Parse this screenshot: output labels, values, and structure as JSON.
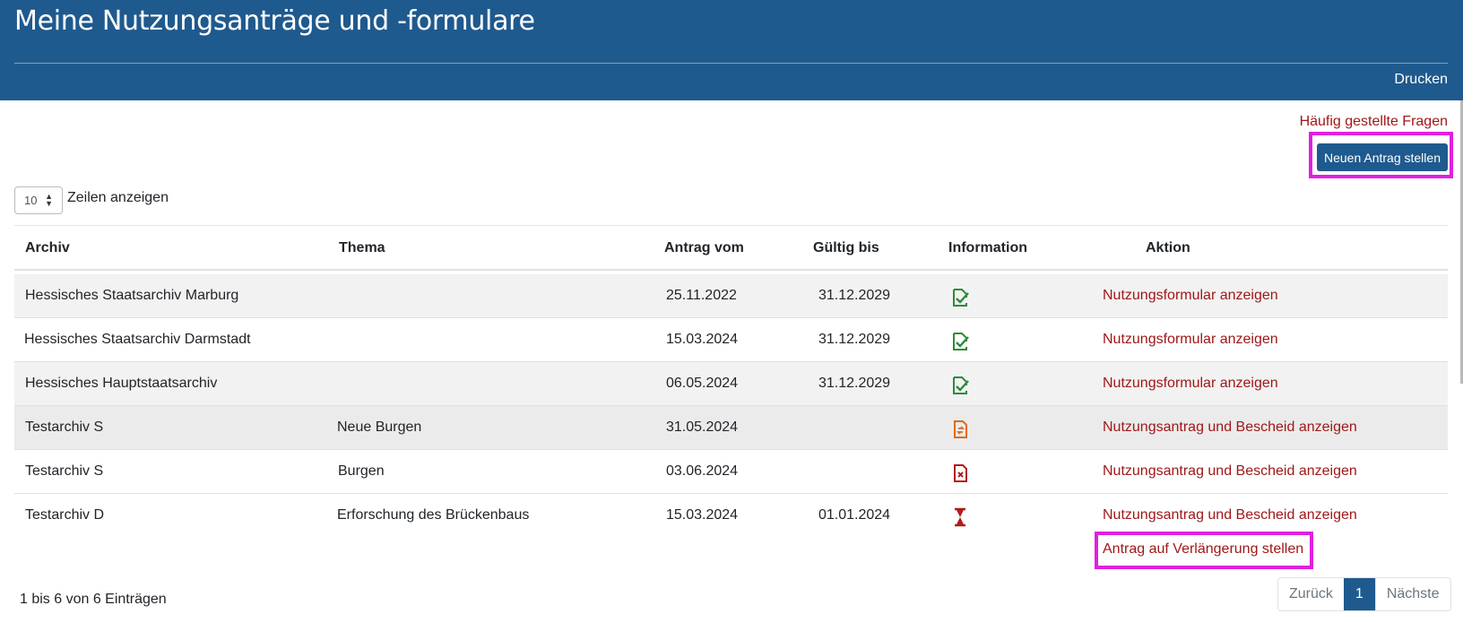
{
  "header": {
    "title": "Meine Nutzungsanträge und -formulare",
    "print_label": "Drucken"
  },
  "faq_link": "Häufig gestellte Fragen",
  "new_request_button": "Neuen Antrag stellen",
  "length": {
    "value": "10",
    "label": "Zeilen anzeigen"
  },
  "columns": [
    "Archiv",
    "Thema",
    "Antrag vom",
    "Gültig bis",
    "Information",
    "Aktion"
  ],
  "rows": [
    {
      "archive": "Hessisches Staatsarchiv Marburg",
      "topic": "",
      "applied": "25.11.2022",
      "valid": "31.12.2029",
      "info_icon": "document-check-icon",
      "action": "Nutzungsformular anzeigen"
    },
    {
      "archive": "Hessisches Staatsarchiv Darmstadt",
      "topic": "",
      "applied": "15.03.2024",
      "valid": "31.12.2029",
      "info_icon": "document-check-icon",
      "action": "Nutzungsformular anzeigen"
    },
    {
      "archive": "Hessisches Hauptstaatsarchiv",
      "topic": "",
      "applied": "06.05.2024",
      "valid": "31.12.2029",
      "info_icon": "document-check-icon",
      "action": "Nutzungsformular anzeigen"
    },
    {
      "archive": "Testarchiv S",
      "topic": "Neue Burgen",
      "applied": "31.05.2024",
      "valid": "",
      "info_icon": "document-refresh-icon",
      "action": "Nutzungsantrag und Bescheid anzeigen"
    },
    {
      "archive": "Testarchiv S",
      "topic": "Burgen",
      "applied": "03.06.2024",
      "valid": "",
      "info_icon": "document-x-icon",
      "action": "Nutzungsantrag und Bescheid anzeigen"
    },
    {
      "archive": "Testarchiv D",
      "topic": "Erforschung des Brückenbaus",
      "applied": "15.03.2024",
      "valid": "01.01.2024",
      "info_icon": "hourglass-icon",
      "action": "Nutzungsantrag und Bescheid anzeigen",
      "extra_action": "Antrag auf Verlängerung stellen"
    }
  ],
  "table_info": "1 bis 6 von 6 Einträgen",
  "pagination": {
    "prev": "Zurück",
    "current": "1",
    "next": "Nächste"
  },
  "colors": {
    "header": "#1f5a8e",
    "link": "#a01818",
    "highlight": "#e020e0",
    "icon_ok": "#2e8b3a",
    "icon_pending": "#e06a1e",
    "icon_denied": "#b01c1c"
  }
}
